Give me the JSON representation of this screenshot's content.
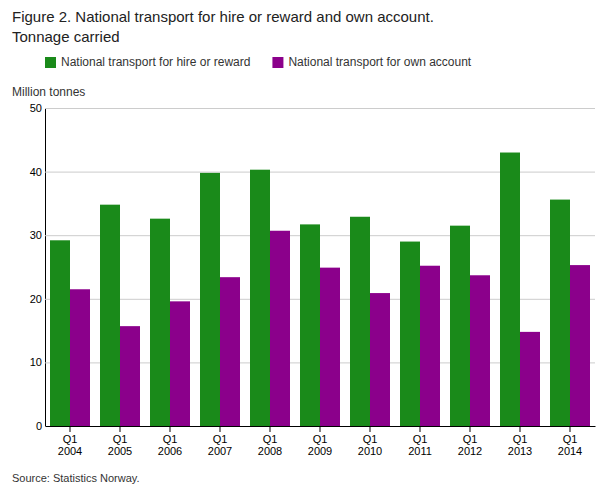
{
  "chart_data": {
    "type": "bar",
    "title": "Figure 2. National transport for hire or reward and own account.",
    "subtitle": "Tonnage carried",
    "ylabel": "Million tonnes",
    "source": "Source: Statistics Norway.",
    "categories": [
      "Q1\n2004",
      "Q1\n2005",
      "Q1\n2006",
      "Q1\n2007",
      "Q1\n2008",
      "Q1\n2009",
      "Q1\n2010",
      "Q1\n2011",
      "Q1\n2012",
      "Q1\n2013",
      "Q1\n2014"
    ],
    "series": [
      {
        "name": "National transport for hire or reward",
        "color": "#1a8a1a",
        "values": [
          29.2,
          34.8,
          32.6,
          39.8,
          40.3,
          31.7,
          32.9,
          29.0,
          31.5,
          43.0,
          35.6
        ]
      },
      {
        "name": "National transport for own account",
        "color": "#8b008b",
        "values": [
          21.5,
          15.7,
          19.6,
          23.4,
          30.7,
          24.9,
          20.9,
          25.2,
          23.7,
          14.8,
          25.3
        ]
      }
    ],
    "ylim": [
      0,
      50
    ],
    "yticks": [
      0,
      10,
      20,
      30,
      40,
      50
    ],
    "grid": true,
    "legend": "upper left"
  }
}
